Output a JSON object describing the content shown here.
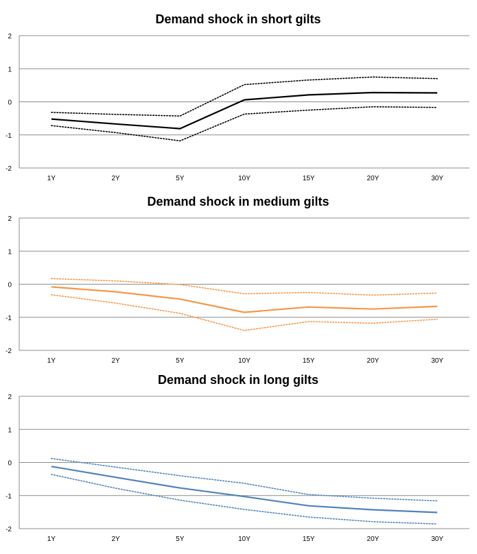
{
  "chart_data": [
    {
      "type": "line",
      "title": "Demand shock in short gilts",
      "categories": [
        "1Y",
        "2Y",
        "5Y",
        "10Y",
        "15Y",
        "20Y",
        "30Y"
      ],
      "ylim": [
        -2,
        2
      ],
      "yticks": [
        "2",
        "1",
        "0",
        "-1",
        "-2"
      ],
      "grid": true,
      "legend": "none",
      "color": "#000000",
      "series": [
        {
          "role": "upper",
          "style": "dotted",
          "values": [
            -0.32,
            -0.38,
            -0.43,
            0.52,
            0.66,
            0.75,
            0.7
          ]
        },
        {
          "role": "mean",
          "style": "solid",
          "values": [
            -0.52,
            -0.67,
            -0.81,
            0.06,
            0.21,
            0.28,
            0.27
          ]
        },
        {
          "role": "lower",
          "style": "dotted",
          "values": [
            -0.72,
            -0.93,
            -1.18,
            -0.37,
            -0.25,
            -0.15,
            -0.17
          ]
        }
      ]
    },
    {
      "type": "line",
      "title": "Demand shock in medium gilts",
      "categories": [
        "1Y",
        "2Y",
        "5Y",
        "10Y",
        "15Y",
        "20Y",
        "30Y"
      ],
      "ylim": [
        -2,
        2
      ],
      "yticks": [
        "2",
        "1",
        "0",
        "-1",
        "-2"
      ],
      "grid": true,
      "legend": "none",
      "color": "#f79646",
      "series": [
        {
          "role": "upper",
          "style": "dotted",
          "values": [
            0.17,
            0.1,
            -0.01,
            -0.29,
            -0.25,
            -0.33,
            -0.27
          ]
        },
        {
          "role": "mean",
          "style": "solid",
          "values": [
            -0.08,
            -0.23,
            -0.45,
            -0.85,
            -0.69,
            -0.75,
            -0.67
          ]
        },
        {
          "role": "lower",
          "style": "dotted",
          "values": [
            -0.32,
            -0.57,
            -0.88,
            -1.4,
            -1.13,
            -1.18,
            -1.06
          ]
        }
      ]
    },
    {
      "type": "line",
      "title": "Demand shock in long gilts",
      "categories": [
        "1Y",
        "2Y",
        "5Y",
        "10Y",
        "15Y",
        "20Y",
        "30Y"
      ],
      "ylim": [
        -2,
        2
      ],
      "yticks": [
        "2",
        "1",
        "0",
        "-1",
        "-2"
      ],
      "grid": true,
      "legend": "none",
      "color": "#4f81bd",
      "series": [
        {
          "role": "upper",
          "style": "dotted",
          "values": [
            0.12,
            -0.14,
            -0.4,
            -0.63,
            -0.97,
            -1.08,
            -1.16
          ]
        },
        {
          "role": "mean",
          "style": "solid",
          "values": [
            -0.12,
            -0.45,
            -0.77,
            -1.03,
            -1.31,
            -1.43,
            -1.51
          ]
        },
        {
          "role": "lower",
          "style": "dotted",
          "values": [
            -0.36,
            -0.78,
            -1.14,
            -1.42,
            -1.65,
            -1.79,
            -1.86
          ]
        }
      ]
    }
  ]
}
